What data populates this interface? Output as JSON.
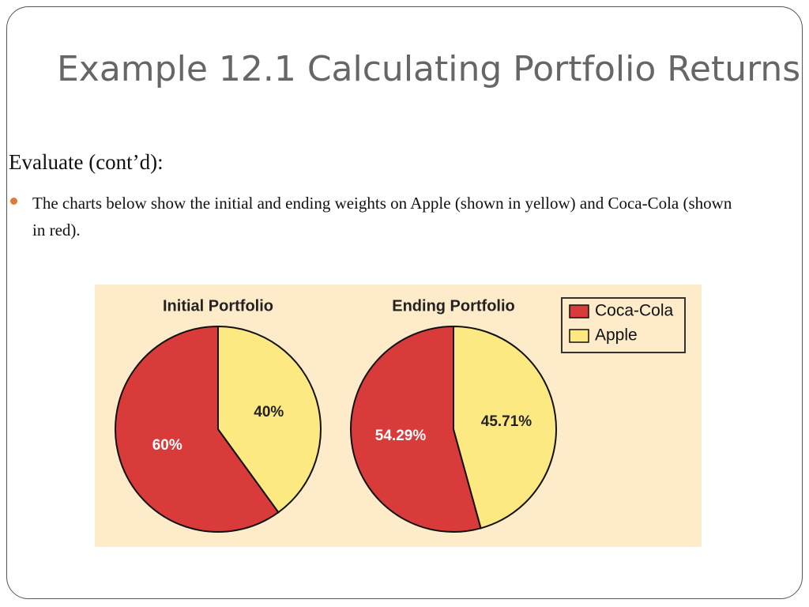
{
  "slide": {
    "title": "Example 12.1 Calculating Portfolio Returns",
    "heading": "Evaluate (cont’d):",
    "bullets": [
      "The charts below show the initial and ending weights on Apple (shown in yellow) and Coca-Cola (shown in red)."
    ]
  },
  "chart_data": [
    {
      "type": "pie",
      "title": "Initial Portfolio",
      "categories": [
        "Coca-Cola",
        "Apple"
      ],
      "values": [
        60,
        40
      ],
      "value_labels": [
        "60%",
        "40%"
      ],
      "colors": [
        "#d93a3a",
        "#fde982"
      ],
      "legend": "top-right"
    },
    {
      "type": "pie",
      "title": "Ending Portfolio",
      "categories": [
        "Coca-Cola",
        "Apple"
      ],
      "values": [
        54.29,
        45.71
      ],
      "value_labels": [
        "54.29%",
        "45.71%"
      ],
      "colors": [
        "#d93a3a",
        "#fde982"
      ]
    }
  ]
}
